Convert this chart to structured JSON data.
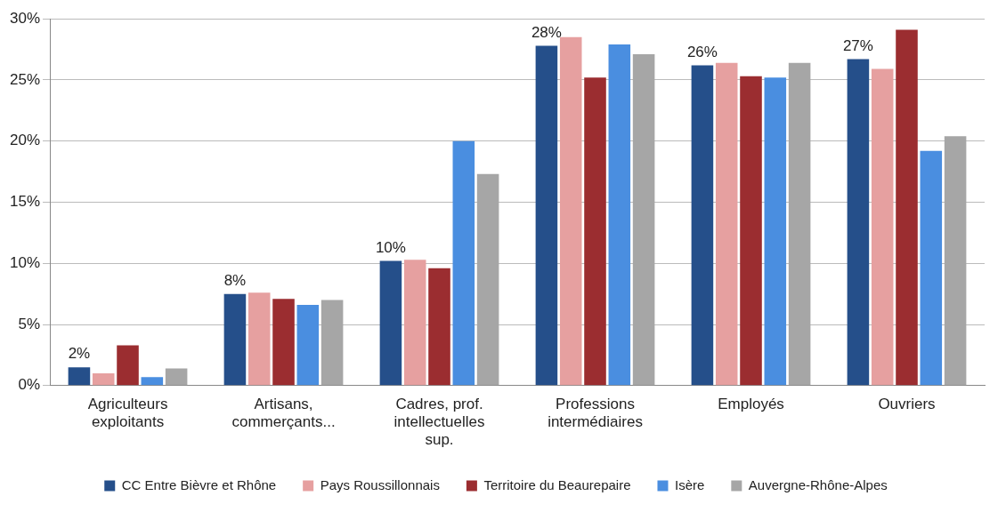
{
  "chart_data": {
    "type": "bar",
    "categories": [
      "Agriculteurs exploitants",
      "Artisans, commerçants...",
      "Cadres, prof. intellectuelles sup.",
      "Professions intermédiaires",
      "Employés",
      "Ouvriers"
    ],
    "series": [
      {
        "name": "CC Entre Bièvre et Rhône",
        "color": "#254f8a",
        "values": [
          1.5,
          7.5,
          10.2,
          27.8,
          26.2,
          26.7
        ],
        "value_labels": [
          "2%",
          "8%",
          "10%",
          "28%",
          "26%",
          "27%"
        ]
      },
      {
        "name": "Pays Roussillonnais",
        "color": "#e6a0a0",
        "values": [
          1.0,
          7.6,
          10.3,
          28.5,
          26.4,
          25.9
        ]
      },
      {
        "name": "Territoire du Beaurepaire",
        "color": "#9b2d30",
        "values": [
          3.3,
          7.1,
          9.6,
          25.2,
          25.3,
          29.1
        ]
      },
      {
        "name": "Isère",
        "color": "#4a8ee0",
        "values": [
          0.7,
          6.6,
          20.0,
          27.9,
          25.2,
          19.2
        ]
      },
      {
        "name": "Auvergne-Rhône-Alpes",
        "color": "#a6a6a6",
        "values": [
          1.4,
          7.0,
          17.3,
          27.1,
          26.4,
          20.4
        ]
      }
    ],
    "ylim": [
      0,
      30
    ],
    "yticks": [
      {
        "value": 0,
        "label": "0%"
      },
      {
        "value": 5,
        "label": "5%"
      },
      {
        "value": 10,
        "label": "10%"
      },
      {
        "value": 15,
        "label": "15%"
      },
      {
        "value": 20,
        "label": "20%"
      },
      {
        "value": 25,
        "label": "25%"
      },
      {
        "value": 30,
        "label": "30%"
      }
    ],
    "grid": "y",
    "legend": "bottom"
  }
}
